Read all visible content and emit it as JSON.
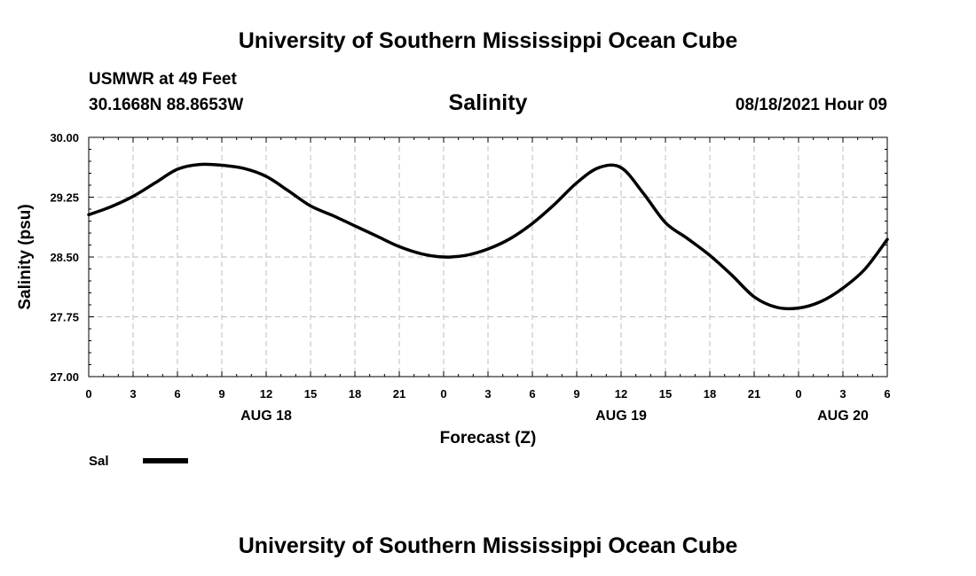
{
  "header": {
    "title": "University of Southern Mississippi Ocean Cube",
    "station": "USMWR at 49 Feet",
    "coords": "30.1668N  88.8653W",
    "chart_title": "Salinity",
    "datetime": "08/18/2021 Hour 09"
  },
  "footer": {
    "title": "University of Southern Mississippi Ocean Cube"
  },
  "legend": {
    "label": "Sal",
    "color": "#000000"
  },
  "chart_data": {
    "type": "line",
    "title": "Salinity",
    "xlabel": "Forecast (Z)",
    "ylabel": "Salinity (psu)",
    "ylim": [
      27.0,
      30.0
    ],
    "xlim": [
      0,
      54
    ],
    "x_unit": "hours from 2021-08-18 00Z",
    "yticks": [
      "27.00",
      "27.75",
      "28.50",
      "29.25",
      "30.00"
    ],
    "xticks": [
      {
        "x": 0,
        "label": "0"
      },
      {
        "x": 3,
        "label": "3"
      },
      {
        "x": 6,
        "label": "6"
      },
      {
        "x": 9,
        "label": "9"
      },
      {
        "x": 12,
        "label": "12"
      },
      {
        "x": 15,
        "label": "15"
      },
      {
        "x": 18,
        "label": "18"
      },
      {
        "x": 21,
        "label": "21"
      },
      {
        "x": 24,
        "label": "0"
      },
      {
        "x": 27,
        "label": "3"
      },
      {
        "x": 30,
        "label": "6"
      },
      {
        "x": 33,
        "label": "9"
      },
      {
        "x": 36,
        "label": "12"
      },
      {
        "x": 39,
        "label": "15"
      },
      {
        "x": 42,
        "label": "18"
      },
      {
        "x": 45,
        "label": "21"
      },
      {
        "x": 48,
        "label": "0"
      },
      {
        "x": 51,
        "label": "3"
      },
      {
        "x": 54,
        "label": "6"
      }
    ],
    "date_labels": [
      {
        "x": 12,
        "label": "AUG 18"
      },
      {
        "x": 36,
        "label": "AUG 19"
      },
      {
        "x": 51,
        "label": "AUG 20"
      }
    ],
    "grid": true,
    "legend_position": "bottom-left",
    "series": [
      {
        "name": "Sal",
        "x": [
          0,
          1.5,
          3,
          4.5,
          6,
          7.5,
          9,
          10.5,
          12,
          13.5,
          15,
          16.5,
          18,
          19.5,
          21,
          22.5,
          24,
          25.5,
          27,
          28.5,
          30,
          31.5,
          33,
          34.5,
          36,
          37.5,
          39,
          40.5,
          42,
          43.5,
          45,
          46.5,
          48,
          49.5,
          51,
          52.5,
          54
        ],
        "values": [
          29.03,
          29.13,
          29.26,
          29.43,
          29.6,
          29.66,
          29.65,
          29.61,
          29.51,
          29.33,
          29.14,
          29.02,
          28.89,
          28.76,
          28.63,
          28.54,
          28.5,
          28.52,
          28.6,
          28.73,
          28.92,
          29.16,
          29.43,
          29.62,
          29.62,
          29.3,
          28.93,
          28.73,
          28.52,
          28.27,
          28.0,
          27.87,
          27.86,
          27.94,
          28.11,
          28.35,
          28.72
        ]
      }
    ]
  }
}
